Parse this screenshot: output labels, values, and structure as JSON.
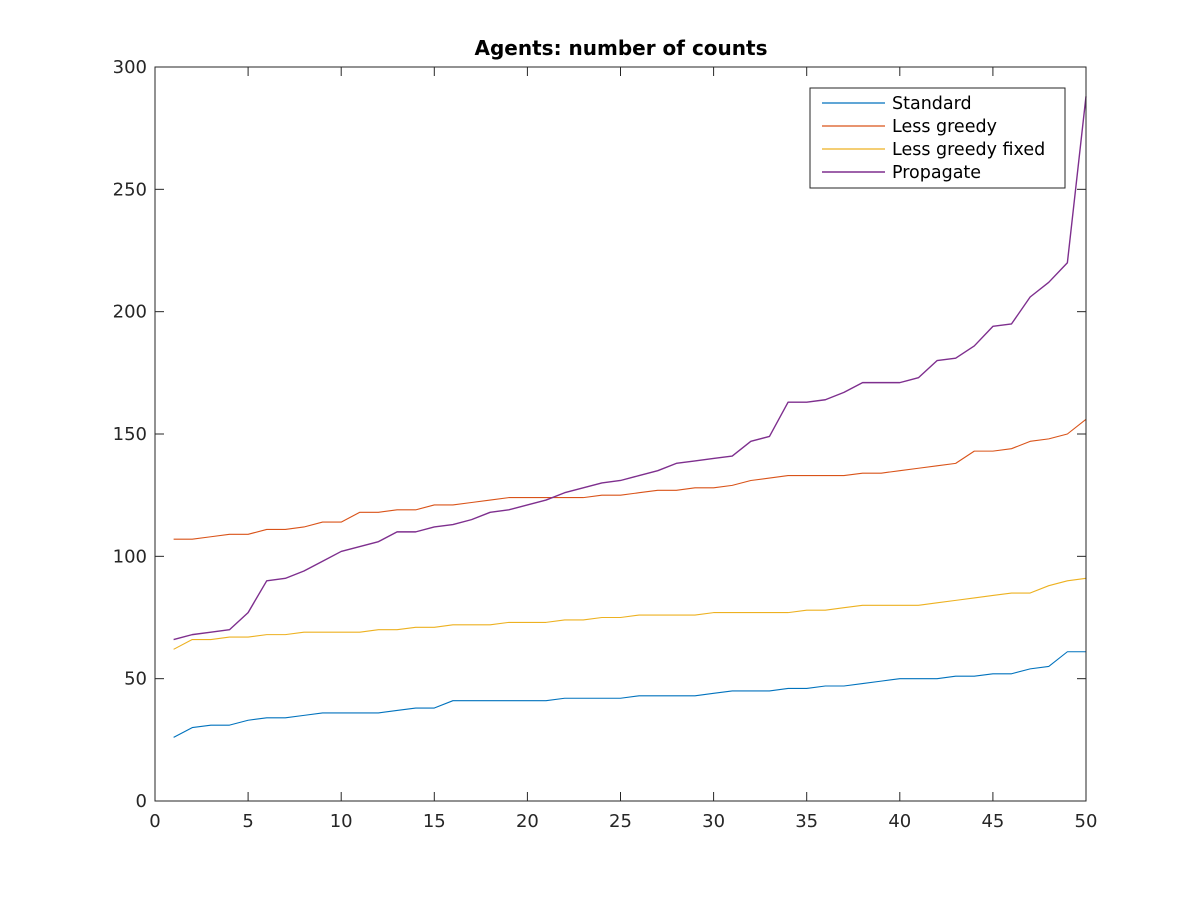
{
  "chart_data": {
    "type": "line",
    "title": "Agents: number of counts",
    "xlabel": "",
    "ylabel": "",
    "xlim": [
      0,
      50
    ],
    "ylim": [
      0,
      300
    ],
    "xticks": [
      "0",
      "5",
      "10",
      "15",
      "20",
      "25",
      "30",
      "35",
      "40",
      "45",
      "50"
    ],
    "yticks": [
      "0",
      "50",
      "100",
      "150",
      "200",
      "250",
      "300"
    ],
    "grid": false,
    "legend_position": "top-right",
    "x": [
      1,
      2,
      3,
      4,
      5,
      6,
      7,
      8,
      9,
      10,
      11,
      12,
      13,
      14,
      15,
      16,
      17,
      18,
      19,
      20,
      21,
      22,
      23,
      24,
      25,
      26,
      27,
      28,
      29,
      30,
      31,
      32,
      33,
      34,
      35,
      36,
      37,
      38,
      39,
      40,
      41,
      42,
      43,
      44,
      45,
      46,
      47,
      48,
      49,
      50
    ],
    "series": [
      {
        "name": "Standard",
        "color": "#0072bd",
        "values": [
          26,
          30,
          31,
          31,
          33,
          34,
          34,
          35,
          36,
          36,
          36,
          36,
          37,
          38,
          38,
          41,
          41,
          41,
          41,
          41,
          41,
          42,
          42,
          42,
          42,
          43,
          43,
          43,
          43,
          44,
          45,
          45,
          45,
          46,
          46,
          47,
          47,
          48,
          49,
          50,
          50,
          50,
          51,
          51,
          52,
          52,
          54,
          55,
          61,
          61
        ]
      },
      {
        "name": "Less greedy",
        "color": "#d95319",
        "values": [
          107,
          107,
          108,
          109,
          109,
          111,
          111,
          112,
          114,
          114,
          118,
          118,
          119,
          119,
          121,
          121,
          122,
          123,
          124,
          124,
          124,
          124,
          124,
          125,
          125,
          126,
          127,
          127,
          128,
          128,
          129,
          131,
          132,
          133,
          133,
          133,
          133,
          134,
          134,
          135,
          136,
          137,
          138,
          143,
          143,
          144,
          147,
          148,
          150,
          156
        ]
      },
      {
        "name": "Less greedy fixed",
        "color": "#edb120",
        "values": [
          62,
          66,
          66,
          67,
          67,
          68,
          68,
          69,
          69,
          69,
          69,
          70,
          70,
          71,
          71,
          72,
          72,
          72,
          73,
          73,
          73,
          74,
          74,
          75,
          75,
          76,
          76,
          76,
          76,
          77,
          77,
          77,
          77,
          77,
          78,
          78,
          79,
          80,
          80,
          80,
          80,
          81,
          82,
          83,
          84,
          85,
          85,
          88,
          90,
          91
        ]
      },
      {
        "name": "Propagate",
        "color": "#7e2f8e",
        "values": [
          66,
          68,
          69,
          70,
          77,
          90,
          91,
          94,
          98,
          102,
          104,
          106,
          110,
          110,
          112,
          113,
          115,
          118,
          119,
          121,
          123,
          126,
          128,
          130,
          131,
          133,
          135,
          138,
          139,
          140,
          141,
          147,
          149,
          163,
          163,
          164,
          167,
          171,
          171,
          171,
          173,
          180,
          181,
          186,
          194,
          195,
          206,
          212,
          220,
          288
        ]
      }
    ]
  }
}
